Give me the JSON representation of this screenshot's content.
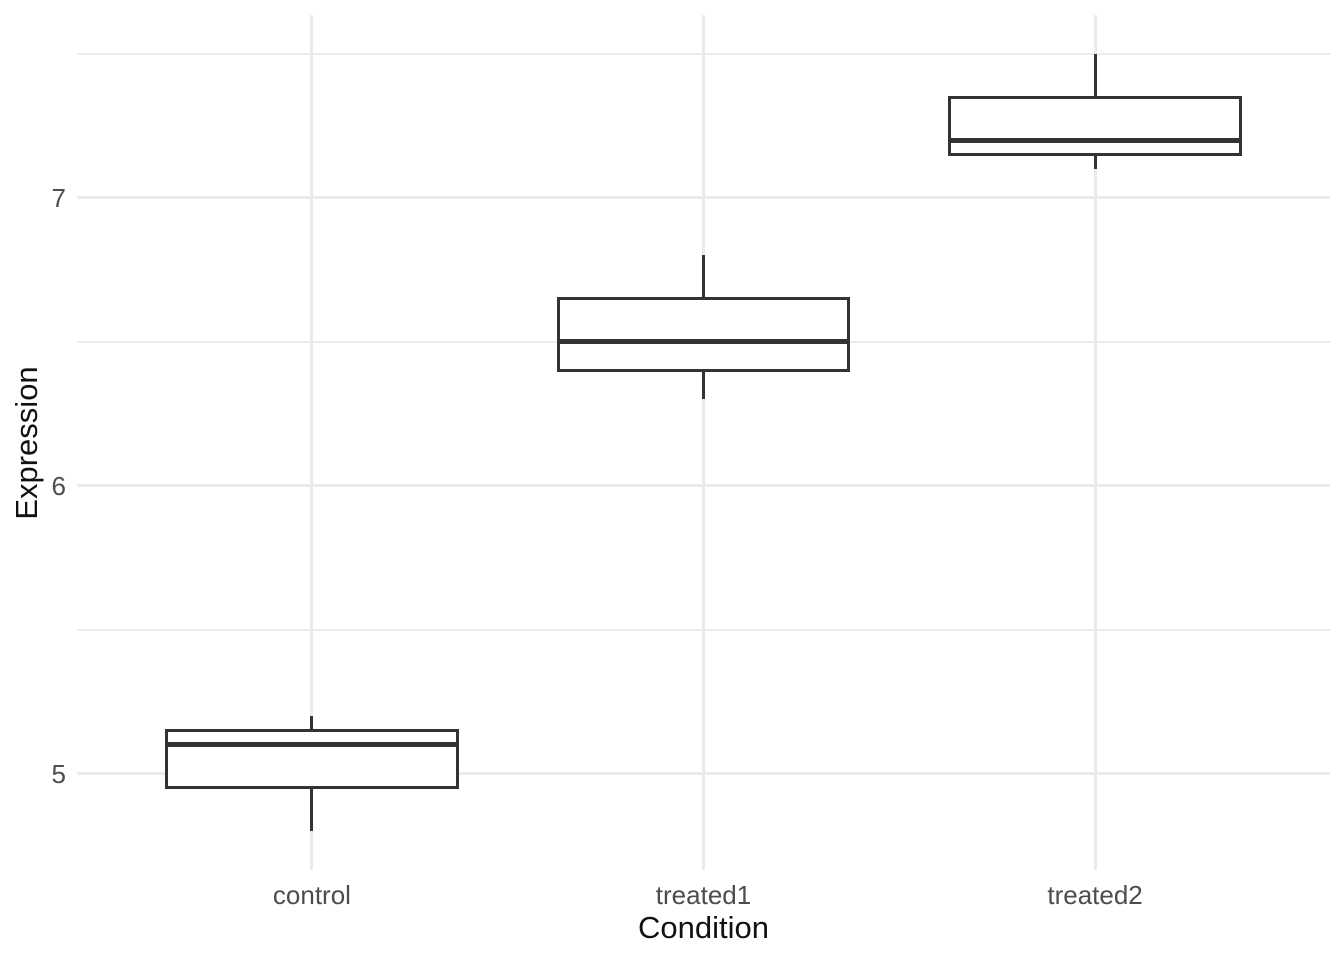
{
  "chart_data": {
    "type": "boxplot",
    "title": "",
    "xlabel": "Condition",
    "ylabel": "Expression",
    "categories": [
      "control",
      "treated1",
      "treated2"
    ],
    "series": [
      {
        "name": "control",
        "whisker_min": 4.8,
        "q1": 4.95,
        "median": 5.1,
        "q3": 5.15,
        "whisker_max": 5.2
      },
      {
        "name": "treated1",
        "whisker_min": 6.3,
        "q1": 6.4,
        "median": 6.5,
        "q3": 6.65,
        "whisker_max": 6.8
      },
      {
        "name": "treated2",
        "whisker_min": 7.1,
        "q1": 7.15,
        "median": 7.2,
        "q3": 7.35,
        "whisker_max": 7.5
      }
    ],
    "y_ticks": [
      5,
      6,
      7
    ],
    "y_minor_ticks": [
      5.5,
      6.5,
      7.5
    ],
    "ylim": [
      4.665,
      7.635
    ],
    "grid": "major-and-minor-horizontal, major-vertical-at-categories",
    "legend": "none"
  },
  "style": {
    "background_color": "#FFFFFF",
    "grid_major_color": "#EBEBEB",
    "grid_minor_color": "#EDEDED",
    "box_stroke_color": "#333333",
    "box_fill_color": "#FFFFFF",
    "axis_text_color": "#4D4D4D",
    "axis_title_color": "#111111"
  }
}
